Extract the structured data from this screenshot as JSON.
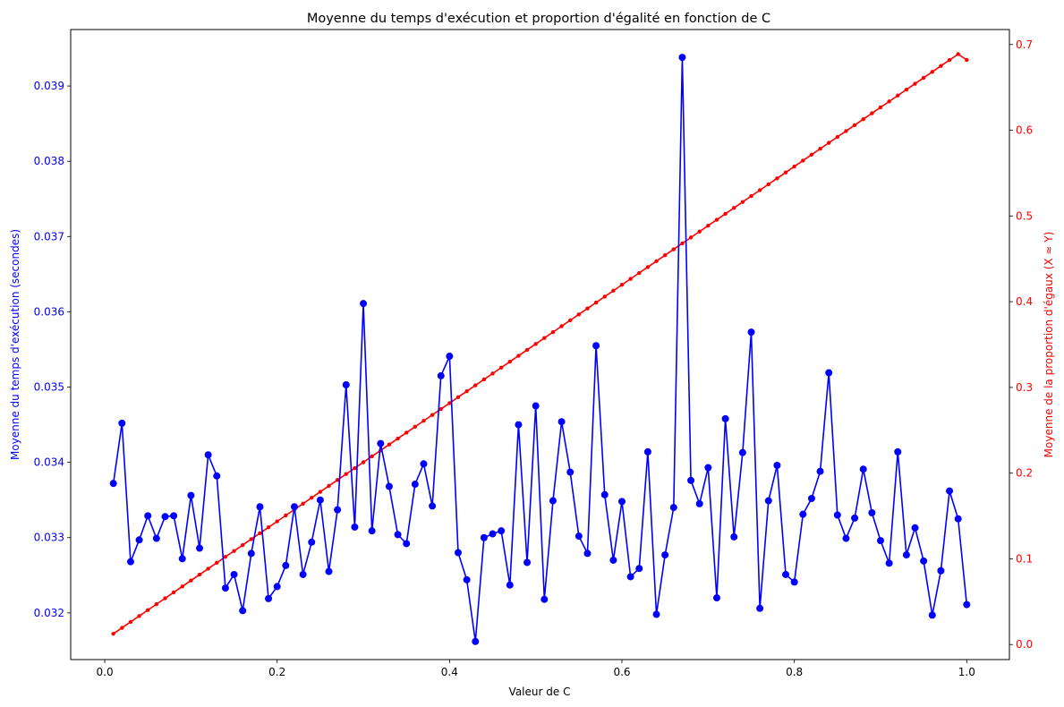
{
  "chart_data": {
    "type": "line",
    "title": "Moyenne du temps d'exécution et proportion d'égalité en fonction de C",
    "xlabel": "Valeur de C",
    "ylabel": "Moyenne du temps d'exécution (secondes)",
    "ylabel_right": "Moyenne de la proportion d'égaux (X ≈ Y)",
    "xlim": [
      -0.0395,
      1.0495
    ],
    "ylim": [
      0.03138,
      0.03975
    ],
    "ylim_right": [
      -0.0175,
      0.7175
    ],
    "xticks": [
      0.0,
      0.2,
      0.4,
      0.6,
      0.8,
      1.0
    ],
    "xtick_labels": [
      "0.0",
      "0.2",
      "0.4",
      "0.6",
      "0.8",
      "1.0"
    ],
    "yticks": [
      0.032,
      0.033,
      0.034,
      0.035,
      0.036,
      0.037,
      0.038,
      0.039
    ],
    "ytick_labels": [
      "0.032",
      "0.033",
      "0.034",
      "0.035",
      "0.036",
      "0.037",
      "0.038",
      "0.039"
    ],
    "yticks_right": [
      0.0,
      0.1,
      0.2,
      0.3,
      0.4,
      0.5,
      0.6,
      0.7
    ],
    "ytick_labels_right": [
      "0.0",
      "0.1",
      "0.2",
      "0.3",
      "0.4",
      "0.5",
      "0.6",
      "0.7"
    ],
    "grid": false,
    "colors": {
      "left_series": "#0000ff",
      "right_series": "#ff0000"
    },
    "x": [
      0.01,
      0.02,
      0.03,
      0.04,
      0.05,
      0.06,
      0.07,
      0.08,
      0.09,
      0.1,
      0.11,
      0.12,
      0.13,
      0.14,
      0.15,
      0.16,
      0.17,
      0.18,
      0.19,
      0.2,
      0.21,
      0.22,
      0.23,
      0.24,
      0.25,
      0.26,
      0.27,
      0.28,
      0.29,
      0.3,
      0.31,
      0.32,
      0.33,
      0.34,
      0.35,
      0.36,
      0.37,
      0.38,
      0.39,
      0.4,
      0.41,
      0.42,
      0.43,
      0.44,
      0.45,
      0.46,
      0.47,
      0.48,
      0.49,
      0.5,
      0.51,
      0.52,
      0.53,
      0.54,
      0.55,
      0.56,
      0.57,
      0.58,
      0.59,
      0.6,
      0.61,
      0.62,
      0.63,
      0.64,
      0.65,
      0.66,
      0.67,
      0.68,
      0.69,
      0.7,
      0.71,
      0.72,
      0.73,
      0.74,
      0.75,
      0.76,
      0.77,
      0.78,
      0.79,
      0.8,
      0.81,
      0.82,
      0.83,
      0.84,
      0.85,
      0.86,
      0.87,
      0.88,
      0.89,
      0.9,
      0.91,
      0.92,
      0.93,
      0.94,
      0.95,
      0.96,
      0.97,
      0.98,
      0.99,
      1.0
    ],
    "series": [
      {
        "axis": "left",
        "marker": "circle",
        "values": [
          0.03372,
          0.03452,
          0.03268,
          0.03297,
          0.03329,
          0.03299,
          0.03328,
          0.03329,
          0.03272,
          0.03356,
          0.03286,
          0.0341,
          0.03382,
          0.03233,
          0.03251,
          0.03203,
          0.03279,
          0.03341,
          0.03219,
          0.03235,
          0.03263,
          0.03341,
          0.03251,
          0.03294,
          0.0335,
          0.03255,
          0.03337,
          0.03503,
          0.03314,
          0.03611,
          0.03309,
          0.03425,
          0.03368,
          0.03304,
          0.03292,
          0.03371,
          0.03398,
          0.03342,
          0.03515,
          0.03541,
          0.0328,
          0.03244,
          0.03162,
          0.033,
          0.03305,
          0.03309,
          0.03237,
          0.0345,
          0.03267,
          0.03475,
          0.03218,
          0.03349,
          0.03454,
          0.03387,
          0.03302,
          0.03279,
          0.03555,
          0.03357,
          0.0327,
          0.03348,
          0.03248,
          0.03259,
          0.03414,
          0.03198,
          0.03277,
          0.0334,
          0.03938,
          0.03376,
          0.03345,
          0.03393,
          0.0322,
          0.03458,
          0.03301,
          0.03413,
          0.03573,
          0.03206,
          0.03349,
          0.03396,
          0.03251,
          0.03241,
          0.03331,
          0.03352,
          0.03388,
          0.03519,
          0.0333,
          0.03299,
          0.03326,
          0.03391,
          0.03333,
          0.03296,
          0.03266,
          0.03414,
          0.03277,
          0.03313,
          0.03269,
          0.03197,
          0.03256,
          0.03362,
          0.03325,
          0.03211
        ]
      },
      {
        "axis": "right",
        "marker": "small-dot",
        "values": [
          0.0126,
          0.0195,
          0.0264,
          0.0333,
          0.0402,
          0.0471,
          0.054,
          0.0609,
          0.0678,
          0.0747,
          0.0816,
          0.0885,
          0.0954,
          0.1023,
          0.1092,
          0.1161,
          0.123,
          0.1299,
          0.1368,
          0.1437,
          0.1506,
          0.1575,
          0.1644,
          0.1713,
          0.1782,
          0.1851,
          0.192,
          0.1989,
          0.2058,
          0.2127,
          0.2196,
          0.2265,
          0.2334,
          0.2403,
          0.2472,
          0.2541,
          0.261,
          0.2679,
          0.2748,
          0.2817,
          0.2886,
          0.2955,
          0.3024,
          0.3093,
          0.3162,
          0.3231,
          0.33,
          0.3369,
          0.3438,
          0.3507,
          0.3576,
          0.3645,
          0.3714,
          0.3783,
          0.3852,
          0.3921,
          0.399,
          0.4059,
          0.4128,
          0.4197,
          0.4266,
          0.4335,
          0.4404,
          0.4473,
          0.4542,
          0.4611,
          0.468,
          0.4749,
          0.4818,
          0.4887,
          0.4956,
          0.5025,
          0.5094,
          0.5163,
          0.5232,
          0.5301,
          0.537,
          0.5439,
          0.5508,
          0.5577,
          0.5646,
          0.5715,
          0.5784,
          0.5853,
          0.5922,
          0.5991,
          0.606,
          0.6129,
          0.6198,
          0.6267,
          0.6336,
          0.6405,
          0.6474,
          0.6543,
          0.6612,
          0.6681,
          0.675,
          0.6819,
          0.6888,
          0.682
        ]
      }
    ]
  }
}
